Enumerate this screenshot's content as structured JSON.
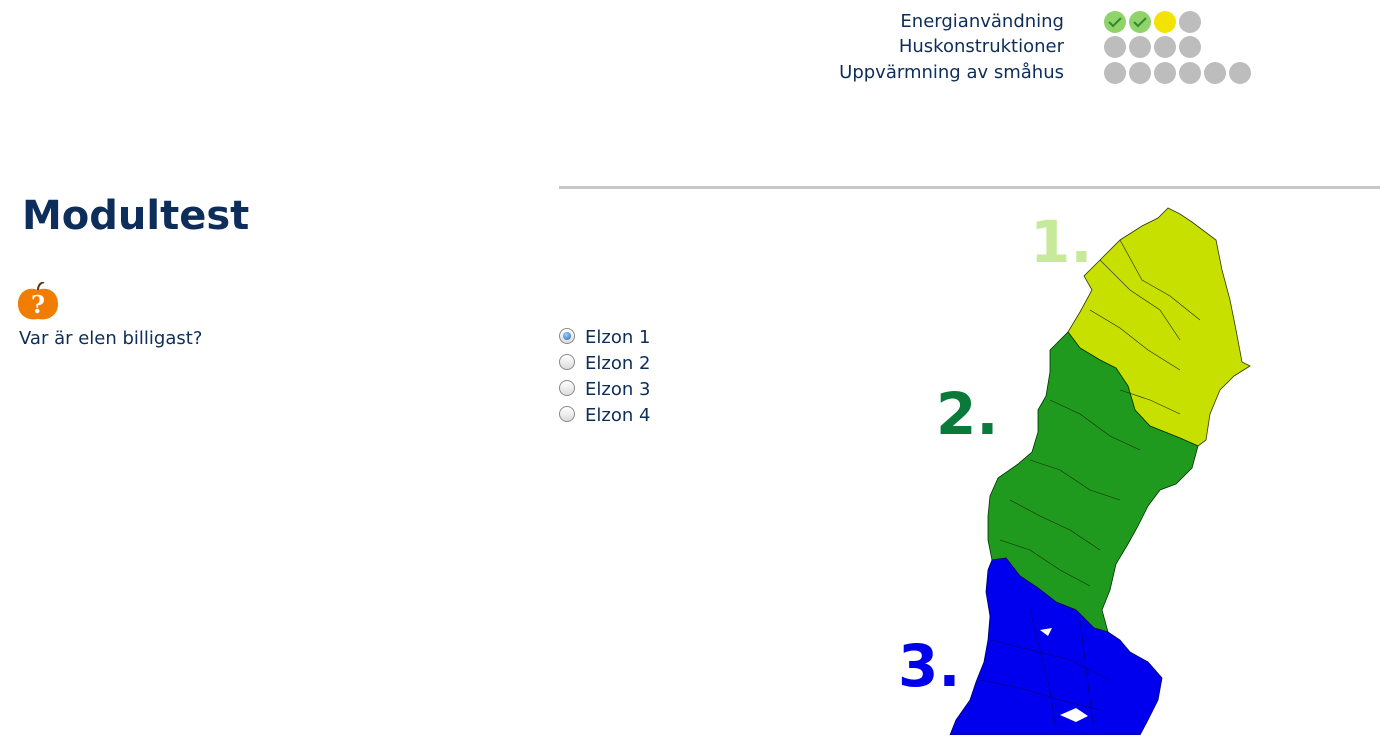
{
  "progress": {
    "items": [
      {
        "label": "Energianvändning",
        "dots": [
          "done",
          "done",
          "current",
          "todo"
        ]
      },
      {
        "label": "Huskonstruktioner",
        "dots": [
          "todo",
          "todo",
          "todo",
          "todo"
        ]
      },
      {
        "label": "Uppvärmning av småhus",
        "dots": [
          "todo",
          "todo",
          "todo",
          "todo",
          "todo",
          "todo"
        ]
      }
    ],
    "colors": {
      "done": "#8fd36a",
      "current": "#f2e400",
      "todo": "#bdbdbd"
    }
  },
  "page": {
    "title": "Modultest",
    "hint_icon": "question-apple-icon",
    "question": "Var är elen billigast?"
  },
  "options": [
    {
      "label": "Elzon 1",
      "checked": true
    },
    {
      "label": "Elzon 2",
      "checked": false
    },
    {
      "label": "Elzon 3",
      "checked": false
    },
    {
      "label": "Elzon 4",
      "checked": false
    }
  ],
  "map": {
    "zones": [
      {
        "label": "1.",
        "color": "#c8e000",
        "label_color": "#c6ea9a"
      },
      {
        "label": "2.",
        "color": "#1f9a1f",
        "label_color": "#0a7a3a"
      },
      {
        "label": "3.",
        "color": "#0000ee",
        "label_color": "#0000ee"
      }
    ]
  }
}
